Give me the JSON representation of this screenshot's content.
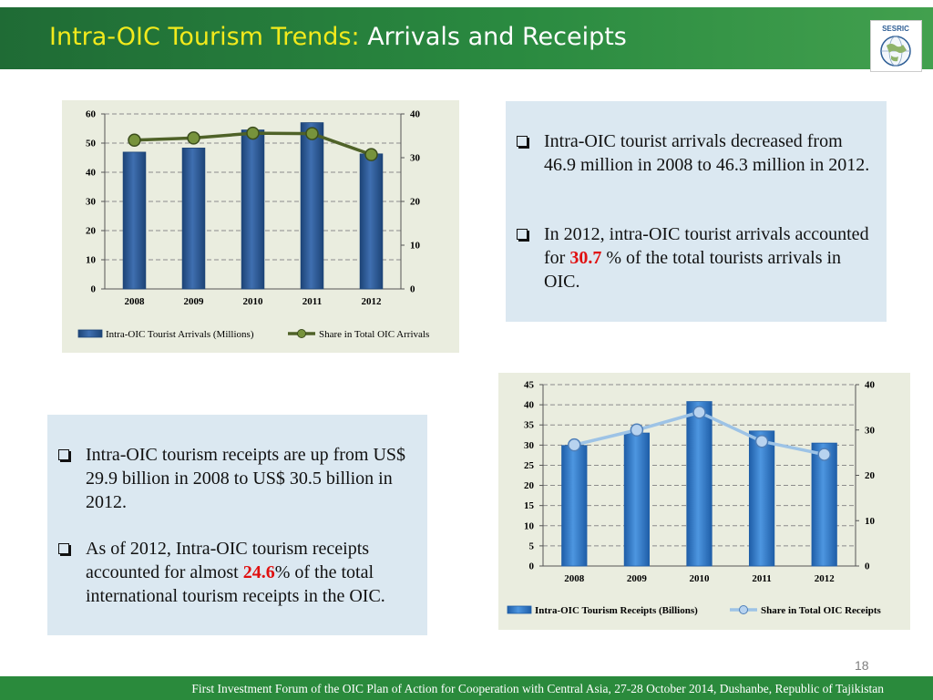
{
  "slide": {
    "title_part1": "Intra-OIC Tourism Trends:",
    "title_part2": "Arrivals and Receipts",
    "logo_text": "SESRIC",
    "page_number": "18",
    "footer": "First Investment Forum of the OIC Plan of Action for Cooperation with Central Asia, 27-28 October 2014, Dushanbe, Republic of Tajikistan",
    "colors": {
      "header": "#2a8a3c",
      "title_accent": "#f2ea1c",
      "highlight": "#e01010",
      "chart_bg": "#eaeddf",
      "text_box_bg": "#dbe8f1"
    }
  },
  "arrivals_text": {
    "bullet1": "Intra-OIC tourist arrivals decreased from 46.9 million in 2008 to 46.3 million in 2012.",
    "bullet2_pre": "In 2012, intra-OIC tourist arrivals accounted for ",
    "bullet2_value": "30.7",
    "bullet2_post": " % of the total tourists arrivals in OIC."
  },
  "receipts_text": {
    "bullet1": "Intra-OIC tourism receipts are up from US$ 29.9 billion in 2008 to US$ 30.5 billion in 2012.",
    "bullet2_pre": "As of 2012, Intra-OIC tourism receipts accounted for almost ",
    "bullet2_value": "24.6",
    "bullet2_post": "% of the total international tourism receipts in the OIC."
  },
  "chart_data": [
    {
      "type": "bar",
      "categories": [
        "2008",
        "2009",
        "2010",
        "2011",
        "2012"
      ],
      "series": [
        {
          "name": "Intra-OIC Tourist Arrivals (Millions)",
          "type": "bar",
          "axis": "left",
          "values": [
            46.9,
            48.3,
            54.5,
            57.0,
            46.3
          ],
          "color": "#1f4e8c"
        },
        {
          "name": "Share in Total OIC Arrivals",
          "type": "line",
          "axis": "right",
          "values": [
            34.0,
            34.5,
            35.6,
            35.5,
            30.7
          ],
          "color": "#4f6228"
        }
      ],
      "ylim_left": [
        0,
        60
      ],
      "yticks_left": [
        "0",
        "10",
        "20",
        "30",
        "40",
        "50",
        "60"
      ],
      "ylim_right": [
        0,
        40
      ],
      "yticks_right": [
        "0",
        "10",
        "20",
        "30",
        "40"
      ],
      "grid": "dashed horizontal",
      "legend": "bottom"
    },
    {
      "type": "bar",
      "categories": [
        "2008",
        "2009",
        "2010",
        "2011",
        "2012"
      ],
      "series": [
        {
          "name": "Intra-OIC Tourism Receipts (Billions)",
          "type": "bar",
          "axis": "left",
          "values": [
            29.9,
            33.0,
            40.8,
            33.5,
            30.5
          ],
          "color": "#2874c6"
        },
        {
          "name": "Share in Total OIC Receipts",
          "type": "line",
          "axis": "right",
          "values": [
            26.7,
            30.0,
            33.9,
            27.5,
            24.6
          ],
          "color": "#8db3e2"
        }
      ],
      "ylim_left": [
        0,
        45
      ],
      "yticks_left": [
        "0",
        "5",
        "10",
        "15",
        "20",
        "25",
        "30",
        "35",
        "40",
        "45"
      ],
      "ylim_right": [
        0,
        40
      ],
      "yticks_right": [
        "0",
        "10",
        "20",
        "30",
        "40"
      ],
      "grid": "dashed horizontal",
      "legend": "bottom"
    }
  ]
}
